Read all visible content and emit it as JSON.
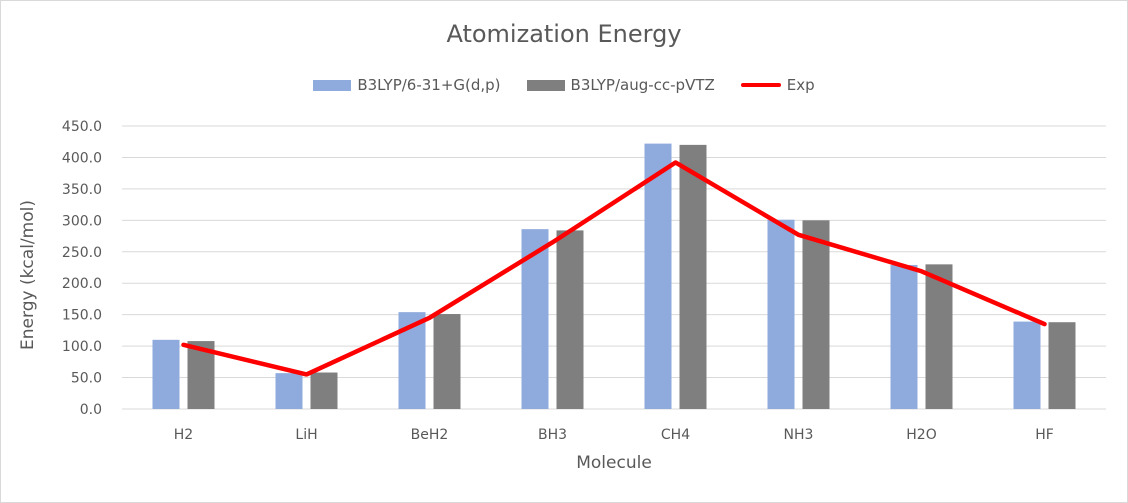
{
  "chart_data": {
    "type": "bar",
    "title": "Atomization Energy",
    "xlabel": "Molecule",
    "ylabel": "Energy (kcal/mol)",
    "ylim": [
      0,
      450
    ],
    "ytick_step": 50,
    "ytick_labels": [
      "0.0",
      "50.0",
      "100.0",
      "150.0",
      "200.0",
      "250.0",
      "300.0",
      "350.0",
      "400.0",
      "450.0"
    ],
    "grid": true,
    "legend_position": "top",
    "categories": [
      "H2",
      "LiH",
      "BeH2",
      "BH3",
      "CH4",
      "NH3",
      "H2O",
      "HF"
    ],
    "series": [
      {
        "name": "B3LYP/6-31+G(d,p)",
        "kind": "bar",
        "color": "#8faadc",
        "values": [
          110,
          57,
          154,
          286,
          422,
          301,
          229,
          139
        ]
      },
      {
        "name": "B3LYP/aug-cc-pVTZ",
        "kind": "bar",
        "color": "#7f7f7f",
        "values": [
          108,
          58,
          151,
          284,
          420,
          300,
          230,
          138
        ]
      },
      {
        "name": "Exp",
        "kind": "line",
        "color": "#ff0000",
        "values": [
          102,
          55,
          145,
          265,
          392,
          277,
          219,
          135
        ]
      }
    ]
  }
}
